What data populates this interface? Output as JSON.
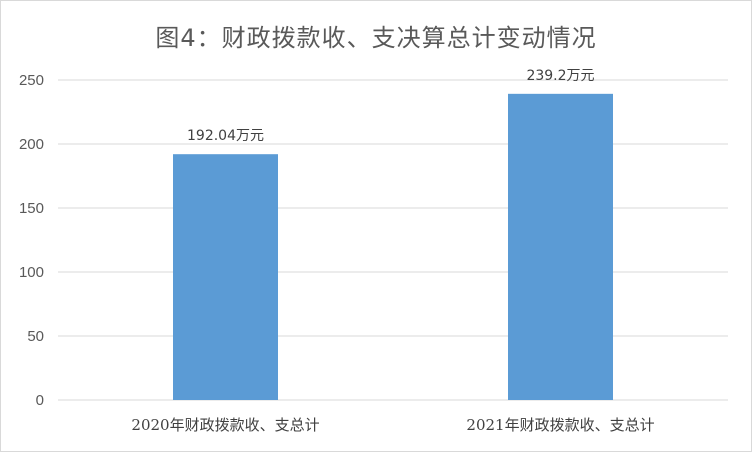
{
  "chart_data": {
    "type": "bar",
    "title": "图4：财政拨款收、支决算总计变动情况",
    "categories": [
      "2020年财政拨款收、支总计",
      "2021年财政拨款收、支总计"
    ],
    "values": [
      192.04,
      239.2
    ],
    "data_labels": [
      "192.04万元",
      "239.2万元"
    ],
    "ylim": [
      0,
      250
    ],
    "yticks": [
      0,
      50,
      100,
      150,
      200,
      250
    ],
    "grid": true,
    "bar_color": "#5b9bd5",
    "grid_color": "#d9d9d9"
  }
}
